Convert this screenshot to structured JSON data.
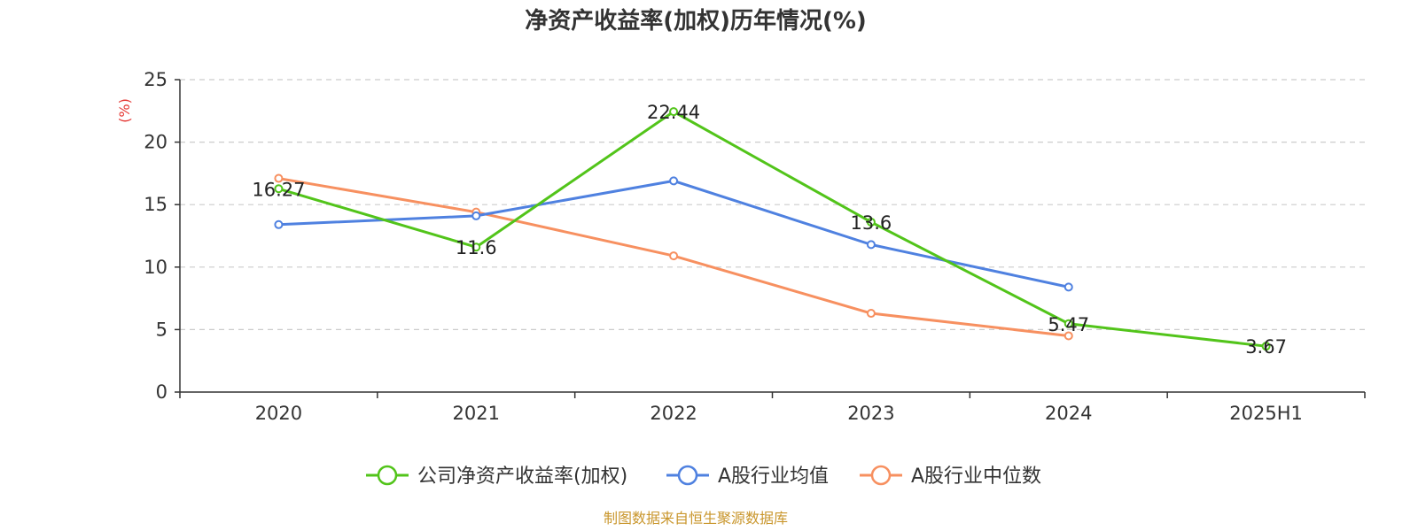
{
  "chart_data": {
    "type": "line",
    "title": "净资产收益率(加权)历年情况(%)",
    "ylabel": "(%)",
    "xlabel": "",
    "categories": [
      "2020",
      "2021",
      "2022",
      "2023",
      "2024",
      "2025H1"
    ],
    "ylim": [
      0,
      25
    ],
    "yticks": [
      0,
      5,
      10,
      15,
      20,
      25
    ],
    "grid": true,
    "legend_position": "bottom",
    "series": [
      {
        "name": "公司净资产收益率(加权)",
        "color": "#52c41a",
        "values": [
          16.27,
          11.6,
          22.44,
          13.6,
          5.47,
          3.67
        ],
        "labels": [
          "16.27",
          "11.6",
          "22.44",
          "13.6",
          "5.47",
          "3.67"
        ]
      },
      {
        "name": "A股行业均值",
        "color": "#4f81e0",
        "values": [
          13.4,
          14.1,
          16.9,
          11.8,
          8.4,
          null
        ]
      },
      {
        "name": "A股行业中位数",
        "color": "#f79060",
        "values": [
          17.1,
          14.4,
          10.9,
          6.3,
          4.5,
          null
        ]
      }
    ],
    "source": "制图数据来自恒生聚源数据库"
  }
}
